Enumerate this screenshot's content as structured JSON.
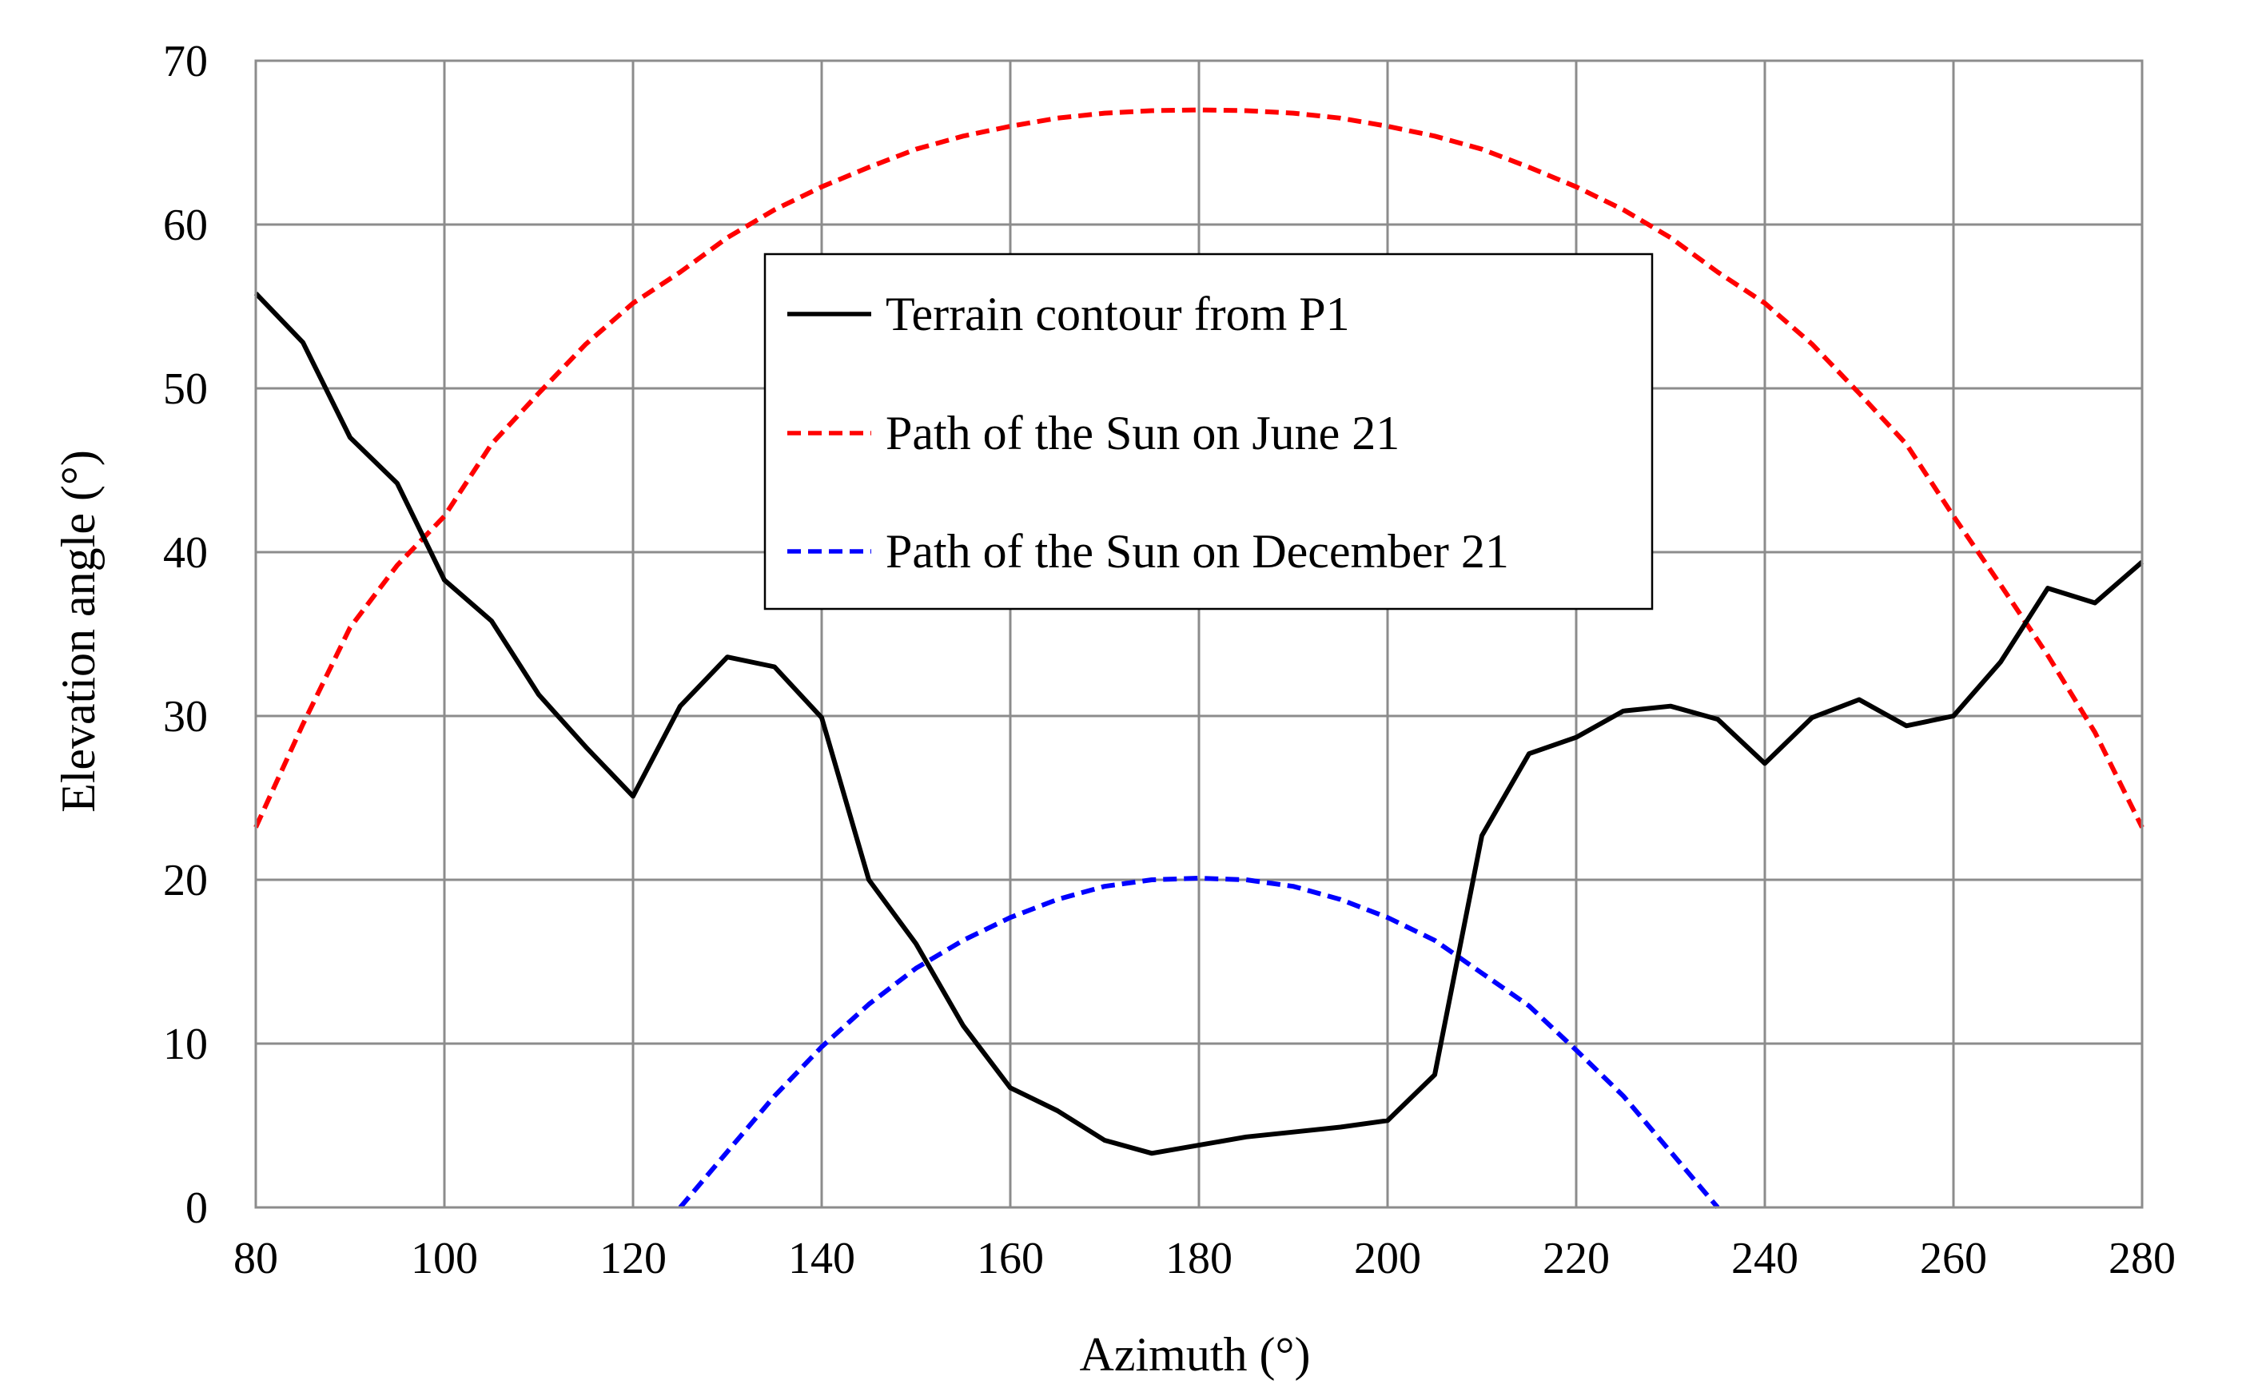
{
  "chart_data": {
    "type": "line",
    "title": "",
    "xlabel": "Azimuth (°)",
    "ylabel": "Elevation angle (°)",
    "xlim": [
      80,
      280
    ],
    "ylim": [
      0,
      70
    ],
    "xticks": [
      80,
      100,
      120,
      140,
      160,
      180,
      200,
      220,
      240,
      260,
      280
    ],
    "yticks": [
      0,
      10,
      20,
      30,
      40,
      50,
      60,
      70
    ],
    "grid": true,
    "legend_position": "top-center",
    "series": [
      {
        "name": "Terrain contour from P1",
        "color": "#000000",
        "style": "solid",
        "x": [
          80,
          85,
          90,
          95,
          100,
          105,
          110,
          115,
          120,
          125,
          130,
          135,
          140,
          145,
          150,
          155,
          160,
          165,
          170,
          175,
          180,
          185,
          190,
          195,
          200,
          205,
          210,
          215,
          220,
          225,
          230,
          235,
          240,
          245,
          250,
          255,
          260,
          265,
          270,
          275,
          280
        ],
        "y": [
          55.8,
          52.8,
          47.0,
          44.2,
          38.3,
          35.8,
          31.3,
          28.1,
          25.1,
          30.6,
          33.6,
          33.0,
          29.9,
          20.0,
          16.1,
          11.1,
          7.3,
          5.9,
          4.1,
          3.3,
          3.8,
          4.3,
          4.6,
          4.9,
          5.3,
          8.1,
          22.7,
          27.7,
          28.7,
          30.3,
          30.6,
          29.8,
          27.1,
          29.9,
          31.0,
          29.4,
          30.0,
          33.3,
          37.8,
          36.9,
          39.4
        ]
      },
      {
        "name": "Path of the Sun on June 21",
        "color": "#ff0000",
        "style": "dashed",
        "x": [
          80,
          85,
          90,
          95,
          100,
          105,
          110,
          115,
          120,
          125,
          130,
          135,
          140,
          145,
          150,
          155,
          160,
          165,
          170,
          175,
          180,
          185,
          190,
          195,
          200,
          205,
          210,
          215,
          220,
          225,
          230,
          235,
          240,
          245,
          250,
          255,
          260,
          265,
          270,
          275,
          280
        ],
        "y": [
          23.2,
          29.5,
          35.4,
          39.2,
          42.2,
          46.6,
          49.7,
          52.7,
          55.2,
          57.1,
          59.2,
          60.9,
          62.3,
          63.5,
          64.6,
          65.4,
          66.0,
          66.5,
          66.8,
          66.95,
          67.0,
          66.95,
          66.8,
          66.5,
          66.0,
          65.4,
          64.6,
          63.5,
          62.3,
          60.9,
          59.2,
          57.1,
          55.2,
          52.7,
          49.7,
          46.6,
          42.2,
          38.0,
          33.7,
          29.0,
          23.2
        ]
      },
      {
        "name": "Path of the Sun on December 21",
        "color": "#0000ff",
        "style": "dashed",
        "x": [
          125,
          130,
          135,
          140,
          145,
          150,
          155,
          160,
          165,
          170,
          175,
          180,
          185,
          190,
          195,
          200,
          205,
          210,
          215,
          220,
          225,
          230,
          235
        ],
        "y": [
          0.0,
          3.4,
          6.8,
          9.8,
          12.4,
          14.6,
          16.3,
          17.7,
          18.8,
          19.6,
          20.0,
          20.1,
          20.0,
          19.6,
          18.8,
          17.7,
          16.3,
          14.3,
          12.3,
          9.6,
          6.8,
          3.4,
          0.0
        ]
      }
    ]
  }
}
